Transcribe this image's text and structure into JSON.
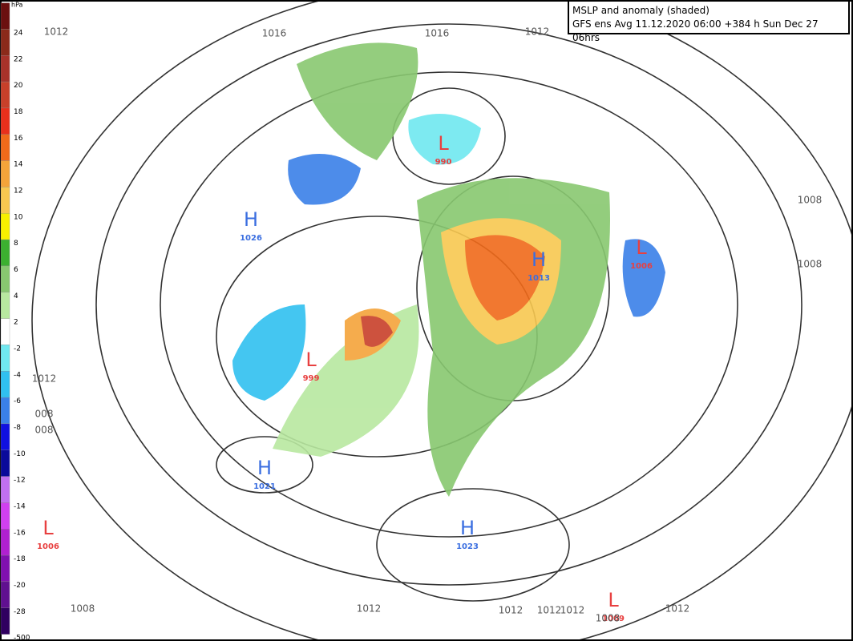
{
  "header": {
    "line1": "MSLP and anomaly (shaded)",
    "line2": "GFS ens Avg 11.12.2020 06:00 +384 h Sun Dec 27 06hrs"
  },
  "colorbar": {
    "unit": "hPa",
    "items": [
      {
        "label": 24,
        "color": "#6b1010"
      },
      {
        "label": 22,
        "color": "#8b2a1a"
      },
      {
        "label": 20,
        "color": "#a8322a"
      },
      {
        "label": 18,
        "color": "#c8402a"
      },
      {
        "label": 16,
        "color": "#e8301c"
      },
      {
        "label": 14,
        "color": "#f06a1a"
      },
      {
        "label": 12,
        "color": "#f4a43a"
      },
      {
        "label": 10,
        "color": "#f8c850"
      },
      {
        "label": 8,
        "color": "#f8f000"
      },
      {
        "label": 6,
        "color": "#3cb030"
      },
      {
        "label": 4,
        "color": "#88c870"
      },
      {
        "label": 2,
        "color": "#b8e8a0"
      },
      {
        "label": -2,
        "color": "#ffffff"
      },
      {
        "label": -4,
        "color": "#70e8f0"
      },
      {
        "label": -6,
        "color": "#30c0f0"
      },
      {
        "label": -8,
        "color": "#3a80e8"
      },
      {
        "label": -10,
        "color": "#1010e0"
      },
      {
        "label": -12,
        "color": "#0a0a9a"
      },
      {
        "label": -14,
        "color": "#c070f0"
      },
      {
        "label": -16,
        "color": "#d040f0"
      },
      {
        "label": -18,
        "color": "#b020d0"
      },
      {
        "label": -20,
        "color": "#8010b0"
      },
      {
        "label": -28,
        "color": "#601090"
      },
      {
        "label": -500,
        "color": "#300060"
      }
    ]
  },
  "centers": [
    {
      "letter": "H",
      "value": "1026",
      "color": "#3a6ee0"
    },
    {
      "letter": "L",
      "value": "990",
      "color": "#e84040"
    },
    {
      "letter": "L",
      "value": "999",
      "color": "#e84040"
    },
    {
      "letter": "H",
      "value": "1013",
      "color": "#3a6ee0"
    },
    {
      "letter": "L",
      "value": "1006",
      "color": "#e84040"
    },
    {
      "letter": "H",
      "value": "1021",
      "color": "#3a6ee0"
    },
    {
      "letter": "L",
      "value": "1006",
      "color": "#e84040"
    },
    {
      "letter": "H",
      "value": "1023",
      "color": "#3a6ee0"
    },
    {
      "letter": "L",
      "value": "1009",
      "color": "#e84040"
    }
  ],
  "isobar_labels": [
    "1012",
    "1016",
    "1016",
    "1012",
    "1008",
    "1008",
    "1012",
    "008",
    "008",
    "1008",
    "1012",
    "1012",
    "1012",
    "1012",
    "1008",
    "1012"
  ]
}
